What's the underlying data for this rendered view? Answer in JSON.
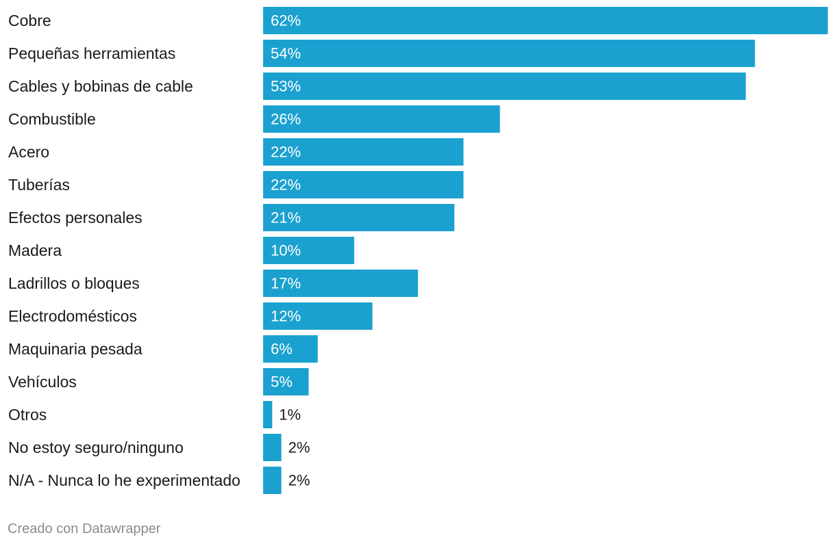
{
  "chart_data": {
    "type": "bar",
    "orientation": "horizontal",
    "categories": [
      "Cobre",
      "Pequeñas herramientas",
      "Cables y bobinas de cable",
      "Combustible",
      "Acero",
      "Tuberías",
      "Efectos personales",
      "Madera",
      "Ladrillos o bloques",
      "Electrodomésticos",
      "Maquinaria pesada",
      "Vehículos",
      "Otros",
      "No estoy seguro/ninguno",
      "N/A - Nunca lo he experimentado"
    ],
    "values": [
      62,
      54,
      53,
      26,
      22,
      22,
      21,
      10,
      17,
      12,
      6,
      5,
      1,
      2,
      2
    ],
    "value_suffix": "%",
    "xlim": [
      0,
      62
    ],
    "bar_color": "#1ba1cf",
    "inside_label_color": "#ffffff",
    "outside_label_color": "#1a1a1a"
  },
  "footer": {
    "credit": "Creado con Datawrapper"
  }
}
